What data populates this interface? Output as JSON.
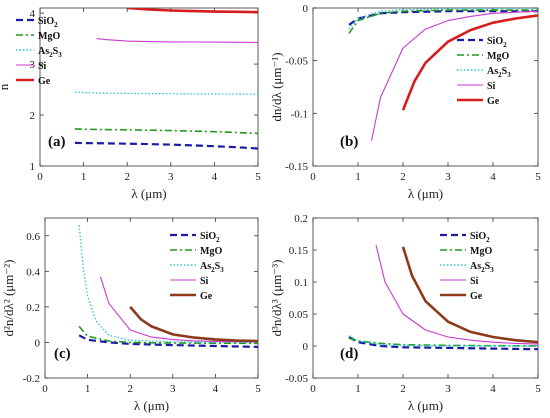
{
  "colors": {
    "SiO2": "#1a1aa6",
    "MgO": "#1f9a1f",
    "As2S3": "#33c7d6",
    "Si": "#c93ad1",
    "Ge": "#d61c1c",
    "Ge_dark": "#8b3a1a"
  },
  "chart_data": [
    {
      "type": "line",
      "panel_label": "(a)",
      "xlabel": "λ (μm)",
      "ylabel": "n",
      "xlim": [
        0,
        5
      ],
      "ylim": [
        1,
        4.1
      ],
      "xticks": [
        "0",
        "1",
        "2",
        "3",
        "4",
        "5"
      ],
      "yticks": [
        "1",
        "2",
        "3",
        "4"
      ],
      "ytick_values": [
        1,
        2,
        3,
        4
      ],
      "legend_position": "top-left",
      "series": [
        {
          "name": "SiO2",
          "x": [
            0.8,
            1,
            1.5,
            2,
            2.5,
            3,
            3.5,
            4,
            4.5,
            5
          ],
          "y": [
            1.453,
            1.45,
            1.445,
            1.438,
            1.43,
            1.419,
            1.405,
            1.389,
            1.368,
            1.343
          ]
        },
        {
          "name": "MgO",
          "x": [
            0.8,
            1,
            1.5,
            2,
            2.5,
            3,
            3.5,
            4,
            4.5,
            5
          ],
          "y": [
            1.728,
            1.72,
            1.715,
            1.71,
            1.703,
            1.695,
            1.685,
            1.672,
            1.657,
            1.64
          ]
        },
        {
          "name": "As2S3",
          "x": [
            0.8,
            1,
            1.5,
            2,
            2.5,
            3,
            3.5,
            4,
            4.5,
            5
          ],
          "y": [
            2.45,
            2.44,
            2.43,
            2.425,
            2.42,
            2.418,
            2.415,
            2.413,
            2.41,
            2.408
          ]
        },
        {
          "name": "Si",
          "x": [
            1.3,
            1.5,
            2,
            2.5,
            3,
            3.5,
            4,
            4.5,
            5
          ],
          "y": [
            3.5,
            3.48,
            3.45,
            3.44,
            3.435,
            3.432,
            3.43,
            3.428,
            3.426
          ]
        },
        {
          "name": "Ge",
          "x": [
            2,
            2.5,
            3,
            3.5,
            4,
            4.5,
            5
          ],
          "y": [
            4.1,
            4.07,
            4.05,
            4.04,
            4.03,
            4.025,
            4.02
          ]
        }
      ]
    },
    {
      "type": "line",
      "panel_label": "(b)",
      "xlabel": "λ (μm)",
      "ylabel": "dn/dλ (μm⁻¹)",
      "xlim": [
        0,
        5
      ],
      "ylim": [
        -0.15,
        0
      ],
      "xticks": [
        "0",
        "1",
        "2",
        "3",
        "4",
        "5"
      ],
      "yticks": [
        "0",
        "-0.05",
        "-0.1",
        "-0.15"
      ],
      "ytick_values": [
        0,
        -0.05,
        -0.1,
        -0.15
      ],
      "legend_position": "right",
      "series": [
        {
          "name": "SiO2",
          "x": [
            0.8,
            1,
            1.5,
            2,
            3,
            4,
            5
          ],
          "y": [
            -0.016,
            -0.01,
            -0.005,
            -0.004,
            -0.003,
            -0.003,
            -0.003
          ]
        },
        {
          "name": "MgO",
          "x": [
            0.8,
            1,
            1.5,
            2,
            3,
            4,
            5
          ],
          "y": [
            -0.024,
            -0.012,
            -0.005,
            -0.003,
            -0.002,
            -0.002,
            -0.002
          ]
        },
        {
          "name": "As2S3",
          "x": [
            0.8,
            1,
            1.5,
            2,
            3,
            4,
            5
          ],
          "y": [
            -0.02,
            -0.01,
            -0.003,
            -0.0015,
            -0.0008,
            -0.0005,
            -0.0004
          ]
        },
        {
          "name": "Si",
          "x": [
            1.3,
            1.5,
            2,
            2.5,
            3,
            3.5,
            4,
            4.5,
            5
          ],
          "y": [
            -0.126,
            -0.085,
            -0.038,
            -0.02,
            -0.012,
            -0.008,
            -0.005,
            -0.004,
            -0.003
          ]
        },
        {
          "name": "Ge",
          "x": [
            2,
            2.25,
            2.5,
            3,
            3.5,
            4,
            4.5,
            5
          ],
          "y": [
            -0.097,
            -0.07,
            -0.052,
            -0.032,
            -0.021,
            -0.014,
            -0.01,
            -0.007
          ]
        }
      ]
    },
    {
      "type": "line",
      "panel_label": "(c)",
      "xlabel": "λ (μm)",
      "ylabel": "d²n/dλ² (μm⁻²)",
      "xlim": [
        0,
        5
      ],
      "ylim": [
        -0.2,
        0.7
      ],
      "xticks": [
        "0",
        "1",
        "2",
        "3",
        "4",
        "5"
      ],
      "yticks": [
        "-0.2",
        "0",
        "0.2",
        "0.4",
        "0.6"
      ],
      "ytick_values": [
        -0.2,
        0,
        0.2,
        0.4,
        0.6
      ],
      "legend_position": "top-right",
      "series": [
        {
          "name": "SiO2",
          "x": [
            0.8,
            1,
            1.5,
            2,
            3,
            4,
            5
          ],
          "y": [
            0.04,
            0.015,
            0.0,
            -0.008,
            -0.015,
            -0.02,
            -0.025
          ]
        },
        {
          "name": "MgO",
          "x": [
            0.8,
            1,
            1.5,
            2,
            3,
            4,
            5
          ],
          "y": [
            0.09,
            0.035,
            0.008,
            0.0,
            -0.003,
            -0.004,
            -0.005
          ]
        },
        {
          "name": "As2S3",
          "x": [
            0.8,
            0.9,
            1,
            1.2,
            1.5,
            2,
            3,
            4,
            5
          ],
          "y": [
            0.66,
            0.42,
            0.26,
            0.12,
            0.04,
            0.012,
            0.004,
            0.002,
            0.001
          ]
        },
        {
          "name": "Si",
          "x": [
            1.3,
            1.5,
            2,
            2.5,
            3,
            3.5,
            4,
            4.5,
            5
          ],
          "y": [
            0.37,
            0.22,
            0.07,
            0.03,
            0.016,
            0.009,
            0.006,
            0.004,
            0.003
          ]
        },
        {
          "name": "Ge",
          "x": [
            2,
            2.25,
            2.5,
            3,
            3.5,
            4,
            4.5,
            5
          ],
          "y": [
            0.2,
            0.13,
            0.09,
            0.045,
            0.027,
            0.017,
            0.011,
            0.008
          ]
        }
      ]
    },
    {
      "type": "line",
      "panel_label": "(d)",
      "xlabel": "λ (μm)",
      "ylabel": "d³n/dλ³ (μm⁻³)",
      "xlim": [
        0,
        5
      ],
      "ylim": [
        -0.05,
        0.2
      ],
      "xticks": [
        "0",
        "1",
        "2",
        "3",
        "4",
        "5"
      ],
      "yticks": [
        "-0.05",
        "0",
        "0.05",
        "0.1",
        "0.15",
        "0.2"
      ],
      "ytick_values": [
        -0.05,
        0,
        0.05,
        0.1,
        0.15,
        0.2
      ],
      "legend_position": "top-right",
      "series": [
        {
          "name": "SiO2",
          "x": [
            0.8,
            1,
            1.5,
            2,
            3,
            4,
            5
          ],
          "y": [
            0.014,
            0.006,
            0.0,
            -0.002,
            -0.003,
            -0.004,
            -0.005
          ]
        },
        {
          "name": "MgO",
          "x": [
            0.8,
            1,
            1.5,
            2,
            3,
            4,
            5
          ],
          "y": [
            0.012,
            0.008,
            0.004,
            0.002,
            0.001,
            0.0005,
            0.0
          ]
        },
        {
          "name": "As2S3",
          "x": [
            0.8,
            1,
            1.5,
            2,
            3,
            4,
            5
          ],
          "y": [
            0.016,
            0.008,
            0.002,
            0.001,
            0.0,
            0.0,
            0.0
          ]
        },
        {
          "name": "Si",
          "x": [
            1.4,
            1.6,
            2,
            2.5,
            3,
            3.5,
            4,
            4.5,
            5
          ],
          "y": [
            0.158,
            0.1,
            0.05,
            0.025,
            0.014,
            0.009,
            0.006,
            0.004,
            0.003
          ]
        },
        {
          "name": "Ge",
          "x": [
            2,
            2.2,
            2.5,
            3,
            3.5,
            4,
            4.5,
            5
          ],
          "y": [
            0.155,
            0.11,
            0.07,
            0.038,
            0.022,
            0.014,
            0.009,
            0.006
          ]
        }
      ]
    }
  ],
  "legend": [
    {
      "key": "SiO2",
      "base": "SiO",
      "sub": "2",
      "mid": "",
      "sub2": "",
      "dash": "7,4",
      "width": 2.2
    },
    {
      "key": "MgO",
      "base": "MgO",
      "sub": "",
      "mid": "",
      "sub2": "",
      "dash": "7,3,2,3",
      "width": 1.6
    },
    {
      "key": "As2S3",
      "base": "As",
      "sub": "2",
      "mid": "S",
      "sub2": "3",
      "dash": "1.5,2",
      "width": 1.4
    },
    {
      "key": "Si",
      "base": "Si",
      "sub": "",
      "mid": "",
      "sub2": "",
      "dash": "",
      "width": 1.1
    },
    {
      "key": "Ge",
      "base": "Ge",
      "sub": "",
      "mid": "",
      "sub2": "",
      "dash": "",
      "width": 2.6
    }
  ]
}
